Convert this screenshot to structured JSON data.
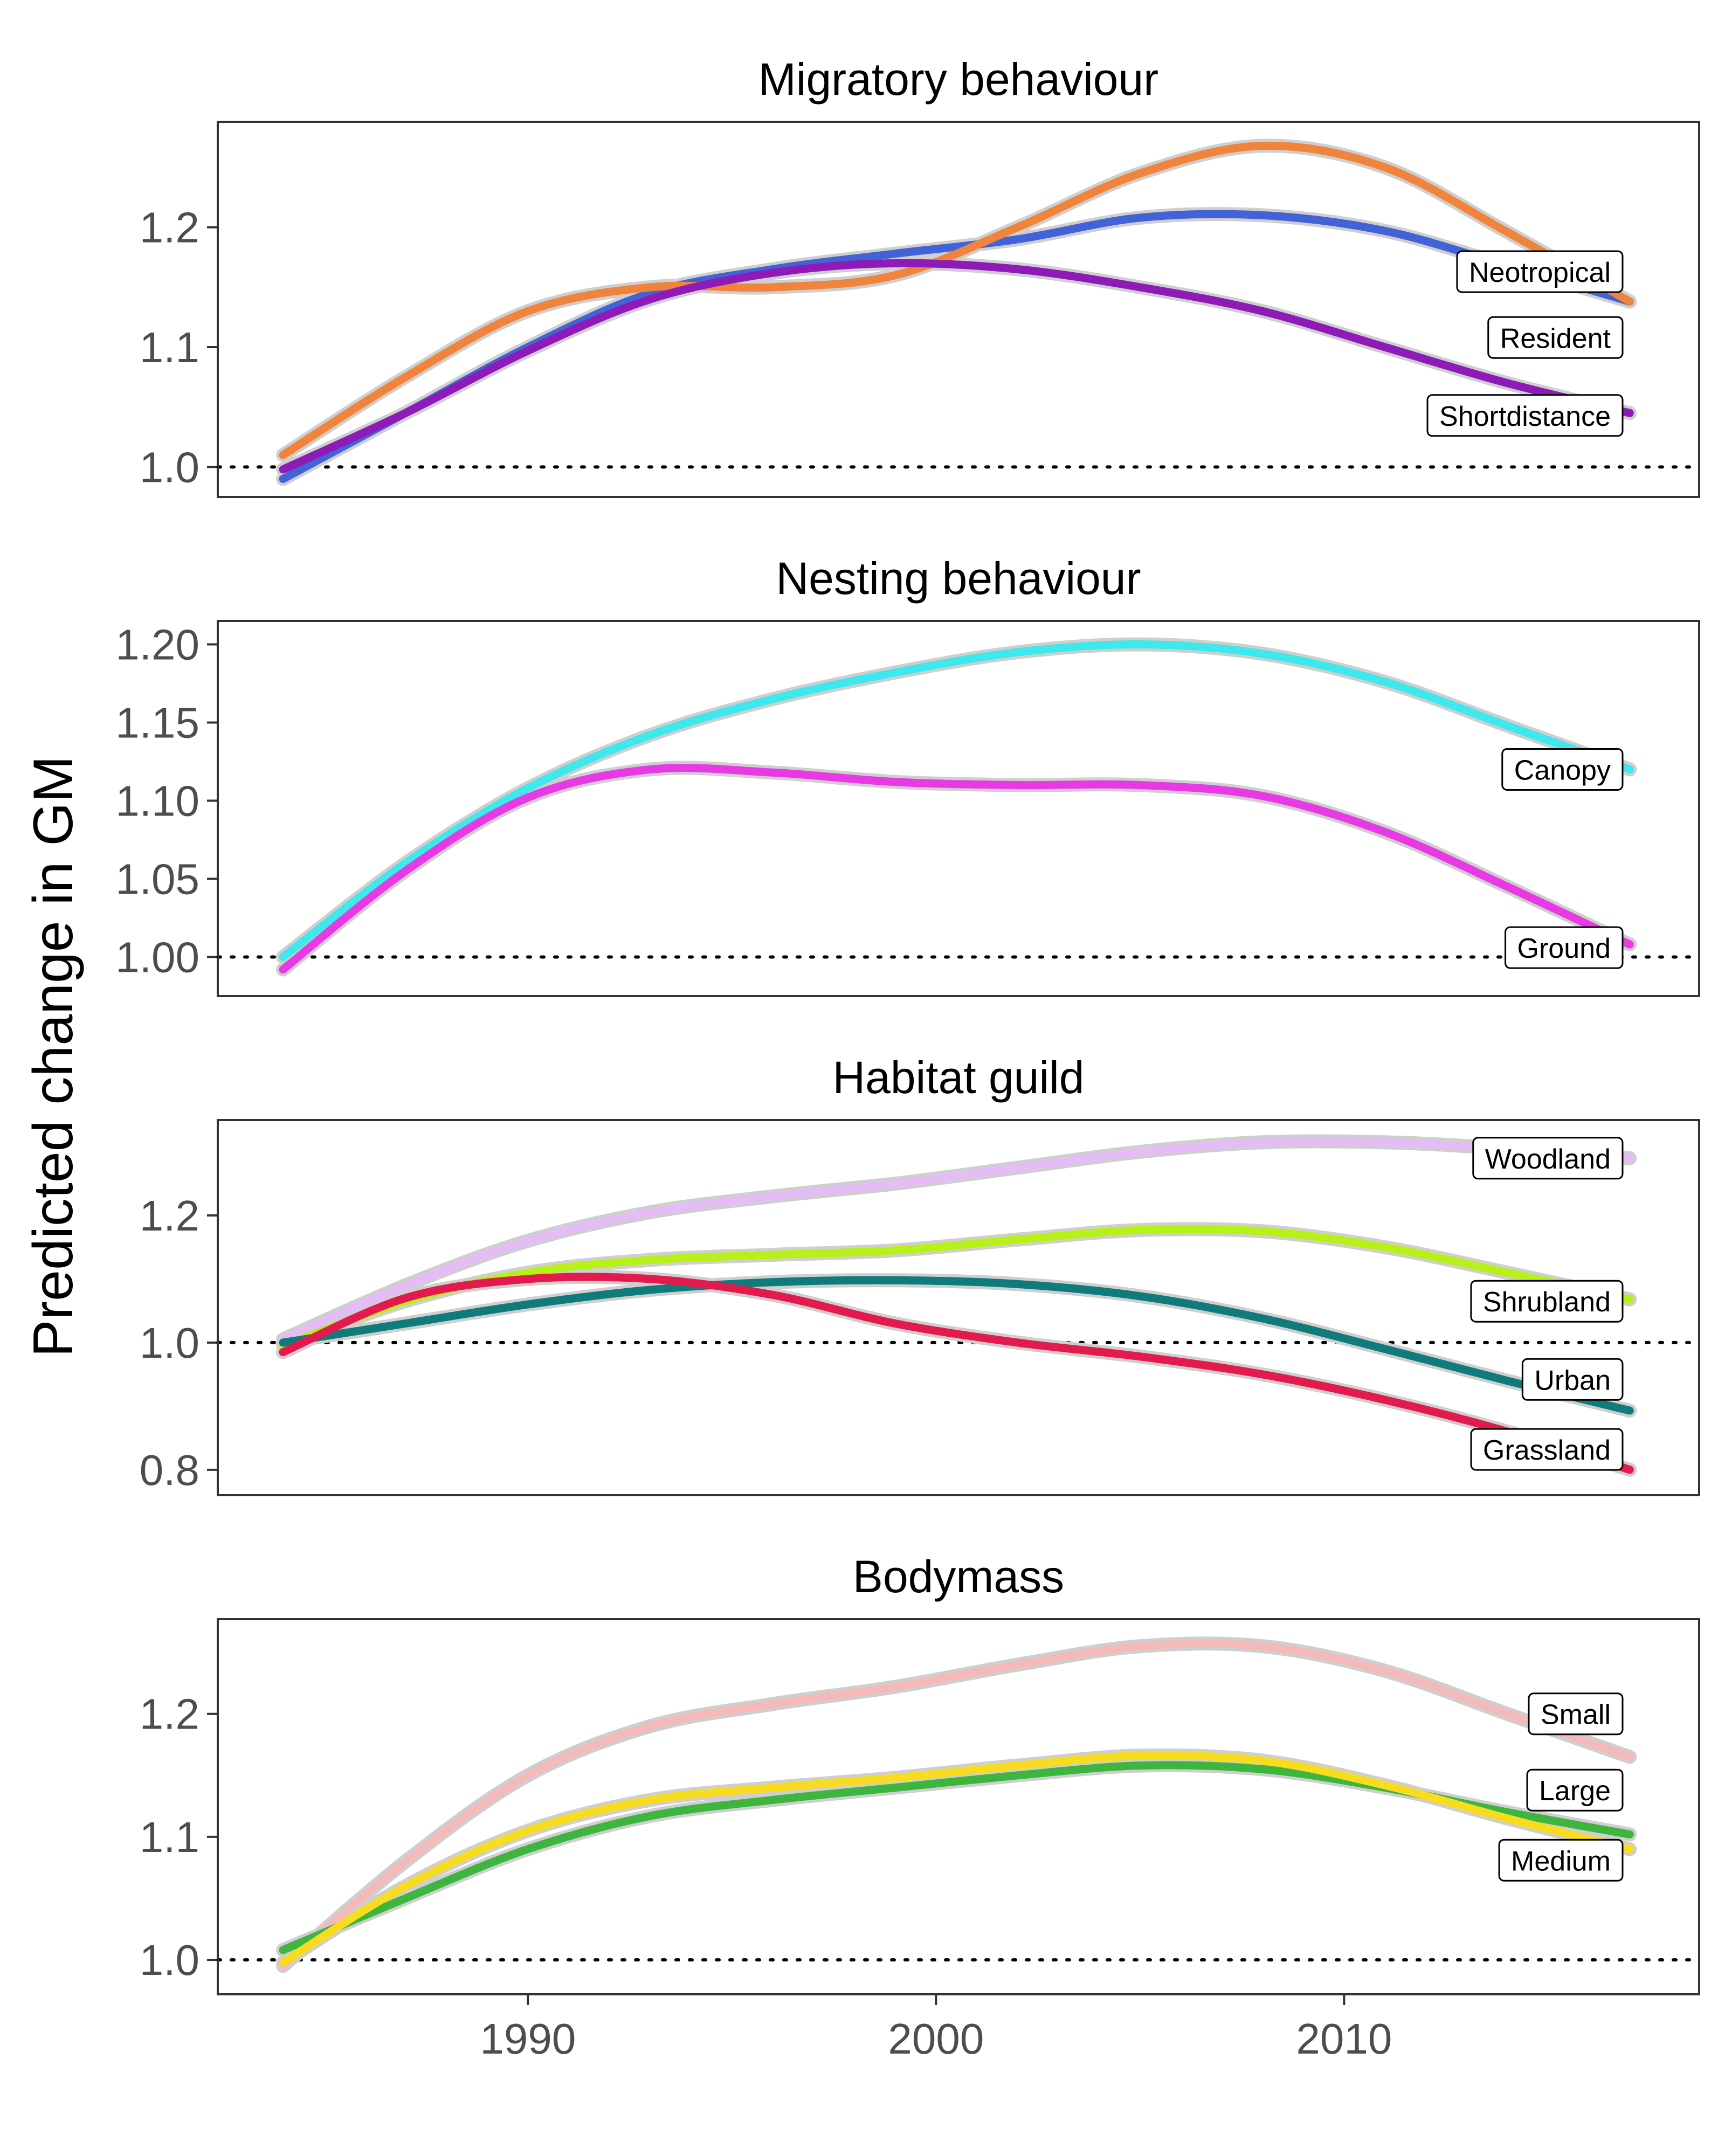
{
  "chart_data": [
    {
      "type": "line",
      "title": "Migratory behaviour",
      "xlabel": "",
      "ylabel": "Predicted change in GM",
      "xlim": [
        1982.4,
        2018.7
      ],
      "ylim": [
        0.975,
        1.288
      ],
      "yticks": [
        1.0,
        1.1,
        1.2
      ],
      "ytick_labels": [
        "1.0",
        "1.1",
        "1.2"
      ],
      "reference_line": 1.0,
      "x": [
        1984,
        1987,
        1990,
        1993,
        1996,
        1999,
        2002,
        2005,
        2008,
        2011,
        2014,
        2017
      ],
      "series": [
        {
          "name": "Neotropical",
          "color": "#4263d8",
          "values": [
            0.99,
            1.045,
            1.1,
            1.145,
            1.165,
            1.178,
            1.19,
            1.208,
            1.21,
            1.197,
            1.168,
            1.138
          ]
        },
        {
          "name": "Resident",
          "color": "#f0843c",
          "values": [
            1.01,
            1.075,
            1.13,
            1.15,
            1.15,
            1.16,
            1.2,
            1.245,
            1.268,
            1.25,
            1.196,
            1.138
          ]
        },
        {
          "name": "Shortdistance",
          "color": "#8e1ab8",
          "values": [
            0.998,
            1.045,
            1.097,
            1.14,
            1.162,
            1.17,
            1.165,
            1.15,
            1.13,
            1.1,
            1.07,
            1.045
          ]
        }
      ],
      "end_labels": [
        {
          "text": "Neotropical",
          "series": "Neotropical",
          "y": 1.163
        },
        {
          "text": "Resident",
          "series": "Resident",
          "y": 1.108
        },
        {
          "text": "Shortdistance",
          "series": "Shortdistance",
          "y": 1.043
        }
      ]
    },
    {
      "type": "line",
      "title": "Nesting behaviour",
      "xlabel": "",
      "ylabel": "Predicted change in GM",
      "xlim": [
        1982.4,
        2018.7
      ],
      "ylim": [
        0.975,
        1.215
      ],
      "yticks": [
        1.0,
        1.05,
        1.1,
        1.15,
        1.2
      ],
      "ytick_labels": [
        "1.00",
        "1.05",
        "1.10",
        "1.15",
        "1.20"
      ],
      "reference_line": 1.0,
      "x": [
        1984,
        1987,
        1990,
        1993,
        1996,
        1999,
        2002,
        2005,
        2008,
        2011,
        2014,
        2017
      ],
      "series": [
        {
          "name": "Canopy",
          "color": "#3ee8ec",
          "values": [
            1.0,
            1.06,
            1.108,
            1.142,
            1.165,
            1.182,
            1.195,
            1.2,
            1.194,
            1.176,
            1.148,
            1.12
          ]
        },
        {
          "name": "Ground",
          "color": "#e83ae4",
          "values": [
            0.992,
            1.055,
            1.102,
            1.12,
            1.118,
            1.112,
            1.11,
            1.11,
            1.103,
            1.08,
            1.045,
            1.008
          ]
        }
      ],
      "end_labels": [
        {
          "text": "Canopy",
          "series": "Canopy",
          "y": 1.12
        },
        {
          "text": "Ground",
          "series": "Ground",
          "y": 1.006
        }
      ]
    },
    {
      "type": "line",
      "title": "Habitat guild",
      "xlabel": "",
      "ylabel": "Predicted change in GM",
      "xlim": [
        1982.4,
        2018.7
      ],
      "ylim": [
        0.76,
        1.35
      ],
      "yticks": [
        0.8,
        1.0,
        1.2
      ],
      "ytick_labels": [
        "0.8",
        "1.0",
        "1.2"
      ],
      "reference_line": 1.0,
      "x": [
        1984,
        1987,
        1990,
        1993,
        1996,
        1999,
        2002,
        2005,
        2008,
        2011,
        2014,
        2017
      ],
      "series": [
        {
          "name": "Woodland",
          "color": "#e6bcf6",
          "values": [
            1.005,
            1.09,
            1.16,
            1.205,
            1.23,
            1.25,
            1.275,
            1.3,
            1.315,
            1.315,
            1.305,
            1.29
          ]
        },
        {
          "name": "Shrubland",
          "color": "#b8f01a",
          "values": [
            0.995,
            1.065,
            1.11,
            1.13,
            1.138,
            1.145,
            1.162,
            1.177,
            1.175,
            1.15,
            1.11,
            1.068
          ]
        },
        {
          "name": "Urban",
          "color": "#0f7b7b",
          "values": [
            1.0,
            1.03,
            1.06,
            1.083,
            1.095,
            1.098,
            1.092,
            1.073,
            1.038,
            0.99,
            0.94,
            0.893
          ]
        },
        {
          "name": "Grassland",
          "color": "#e21a4e",
          "values": [
            0.985,
            1.07,
            1.1,
            1.1,
            1.075,
            1.03,
            1.0,
            0.978,
            0.95,
            0.91,
            0.86,
            0.8
          ]
        }
      ],
      "end_labels": [
        {
          "text": "Woodland",
          "series": "Woodland",
          "y": 1.29
        },
        {
          "text": "Shrubland",
          "series": "Shrubland",
          "y": 1.065
        },
        {
          "text": "Urban",
          "series": "Urban",
          "y": 0.942
        },
        {
          "text": "Grassland",
          "series": "Grassland",
          "y": 0.832
        }
      ]
    },
    {
      "type": "line",
      "title": "Bodymass",
      "xlabel": "",
      "ylabel": "Predicted change in GM",
      "xlim": [
        1982.4,
        2018.7
      ],
      "ylim": [
        0.972,
        1.277
      ],
      "yticks": [
        1.0,
        1.1,
        1.2
      ],
      "ytick_labels": [
        "1.0",
        "1.1",
        "1.2"
      ],
      "xticks": [
        1990,
        2000,
        2010
      ],
      "xtick_labels": [
        "1990",
        "2000",
        "2010"
      ],
      "reference_line": 1.0,
      "x": [
        1984,
        1987,
        1990,
        1993,
        1996,
        1999,
        2002,
        2005,
        2008,
        2011,
        2014,
        2017
      ],
      "series": [
        {
          "name": "Small",
          "color": "#f4b9b9",
          "values": [
            0.995,
            1.08,
            1.15,
            1.19,
            1.208,
            1.222,
            1.24,
            1.255,
            1.255,
            1.235,
            1.2,
            1.165
          ]
        },
        {
          "name": "Large",
          "color": "#3eb53e",
          "values": [
            1.008,
            1.05,
            1.09,
            1.117,
            1.13,
            1.14,
            1.15,
            1.158,
            1.155,
            1.14,
            1.12,
            1.102
          ]
        },
        {
          "name": "Medium",
          "color": "#f7dc1f",
          "values": [
            0.998,
            1.06,
            1.105,
            1.13,
            1.14,
            1.148,
            1.158,
            1.166,
            1.162,
            1.142,
            1.115,
            1.09
          ]
        }
      ],
      "end_labels": [
        {
          "text": "Small",
          "series": "Small",
          "y": 1.2
        },
        {
          "text": "Large",
          "series": "Large",
          "y": 1.138
        },
        {
          "text": "Medium",
          "series": "Medium",
          "y": 1.081
        }
      ]
    }
  ]
}
